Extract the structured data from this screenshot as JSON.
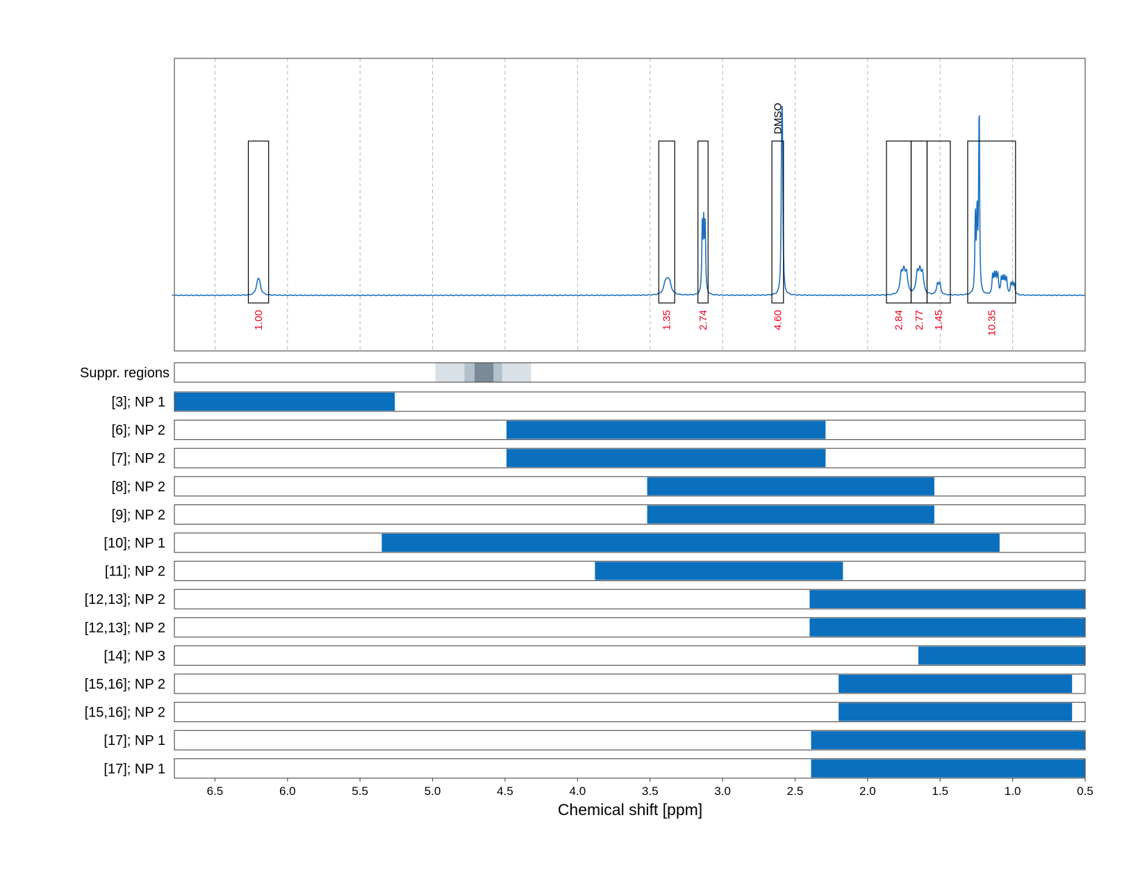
{
  "colors": {
    "spectrum": "#1a6fbf",
    "bar": "#0a6fbd",
    "integral_text": "#e8001c",
    "suppr_light": "#d9e1e7",
    "suppr_mid": "#b3c1cb",
    "suppr_dark": "#7a8a96"
  },
  "chart_data": {
    "type": "nmr-spectrum-with-range-bars",
    "xlabel": "Chemical shift [ppm]",
    "xlim": [
      6.78,
      0.5
    ],
    "x_ticks": [
      6.5,
      6.0,
      5.5,
      5.0,
      4.5,
      4.0,
      3.5,
      3.0,
      2.5,
      2.0,
      1.5,
      1.0,
      0.5
    ],
    "x_tick_labels": [
      "6.5",
      "6.0",
      "5.5",
      "5.0",
      "4.5",
      "4.0",
      "3.5",
      "3.0",
      "2.5",
      "2.0",
      "1.5",
      "1.0",
      "0.5"
    ],
    "spectrum": {
      "baseline": 0,
      "peaks": [
        {
          "center": 6.2,
          "height": 0.07,
          "width": 0.012,
          "split": 0.012,
          "count": 2
        },
        {
          "center": 3.38,
          "height": 0.06,
          "width": 0.015,
          "split": 0.015,
          "count": 3
        },
        {
          "center": 3.13,
          "height": 0.44,
          "width": 0.004,
          "split": 0.01,
          "count": 3
        },
        {
          "center": 2.59,
          "height": 0.88,
          "width": 0.004,
          "split": 0.005,
          "count": 2
        },
        {
          "center": 1.75,
          "height": 0.13,
          "width": 0.01,
          "split": 0.018,
          "count": 3
        },
        {
          "center": 1.64,
          "height": 0.13,
          "width": 0.01,
          "split": 0.018,
          "count": 3
        },
        {
          "center": 1.51,
          "height": 0.07,
          "width": 0.008,
          "split": 0.016,
          "count": 2
        },
        {
          "center": 1.245,
          "height": 0.52,
          "width": 0.004,
          "split": 0.012,
          "count": 3
        },
        {
          "center": 1.23,
          "height": 0.9,
          "width": 0.003,
          "split": 0.0,
          "count": 1
        },
        {
          "center": 1.12,
          "height": 0.12,
          "width": 0.005,
          "split": 0.012,
          "count": 4
        },
        {
          "center": 1.06,
          "height": 0.1,
          "width": 0.005,
          "split": 0.012,
          "count": 4
        },
        {
          "center": 1.0,
          "height": 0.07,
          "width": 0.005,
          "split": 0.012,
          "count": 3
        }
      ]
    },
    "integration_regions": [
      {
        "from": 6.27,
        "to": 6.13,
        "value": "1.00"
      },
      {
        "from": 3.44,
        "to": 3.33,
        "value": "1.35"
      },
      {
        "from": 3.17,
        "to": 3.1,
        "value": "2.74"
      },
      {
        "from": 2.66,
        "to": 2.58,
        "value": "4.60"
      },
      {
        "from": 1.87,
        "to": 1.7,
        "value": "2.84"
      },
      {
        "from": 1.7,
        "to": 1.59,
        "value": "2.77"
      },
      {
        "from": 1.59,
        "to": 1.43,
        "value": "1.45"
      },
      {
        "from": 1.31,
        "to": 0.98,
        "value": "10.35"
      }
    ],
    "annotations": [
      {
        "label": "DMSO",
        "x": 2.62
      }
    ],
    "suppression": {
      "label": "Suppr. regions",
      "regions": [
        {
          "from": 4.98,
          "to": 4.32,
          "level": "light"
        },
        {
          "from": 4.78,
          "to": 4.52,
          "level": "mid"
        },
        {
          "from": 4.71,
          "to": 4.58,
          "level": "dark"
        }
      ]
    },
    "ranges": [
      {
        "label": "[3]; NP 1",
        "from": 6.78,
        "to": 5.26
      },
      {
        "label": "[6]; NP 2",
        "from": 4.49,
        "to": 2.29
      },
      {
        "label": "[7]; NP 2",
        "from": 4.49,
        "to": 2.29
      },
      {
        "label": "[8]; NP 2",
        "from": 3.52,
        "to": 1.54
      },
      {
        "label": "[9]; NP 2",
        "from": 3.52,
        "to": 1.54
      },
      {
        "label": "[10]; NP 1",
        "from": 5.35,
        "to": 1.09
      },
      {
        "label": "[11]; NP 2",
        "from": 3.88,
        "to": 2.17
      },
      {
        "label": "[12,13]; NP 2",
        "from": 2.4,
        "to": 0.5
      },
      {
        "label": "[12,13]; NP 2",
        "from": 2.4,
        "to": 0.5
      },
      {
        "label": "[14]; NP 3",
        "from": 1.65,
        "to": 0.5
      },
      {
        "label": "[15,16]; NP 2",
        "from": 2.2,
        "to": 0.59
      },
      {
        "label": "[15,16]; NP 2",
        "from": 2.2,
        "to": 0.59
      },
      {
        "label": "[17]; NP 1",
        "from": 2.39,
        "to": 0.5
      },
      {
        "label": "[17]; NP 1",
        "from": 2.39,
        "to": 0.5
      }
    ]
  }
}
